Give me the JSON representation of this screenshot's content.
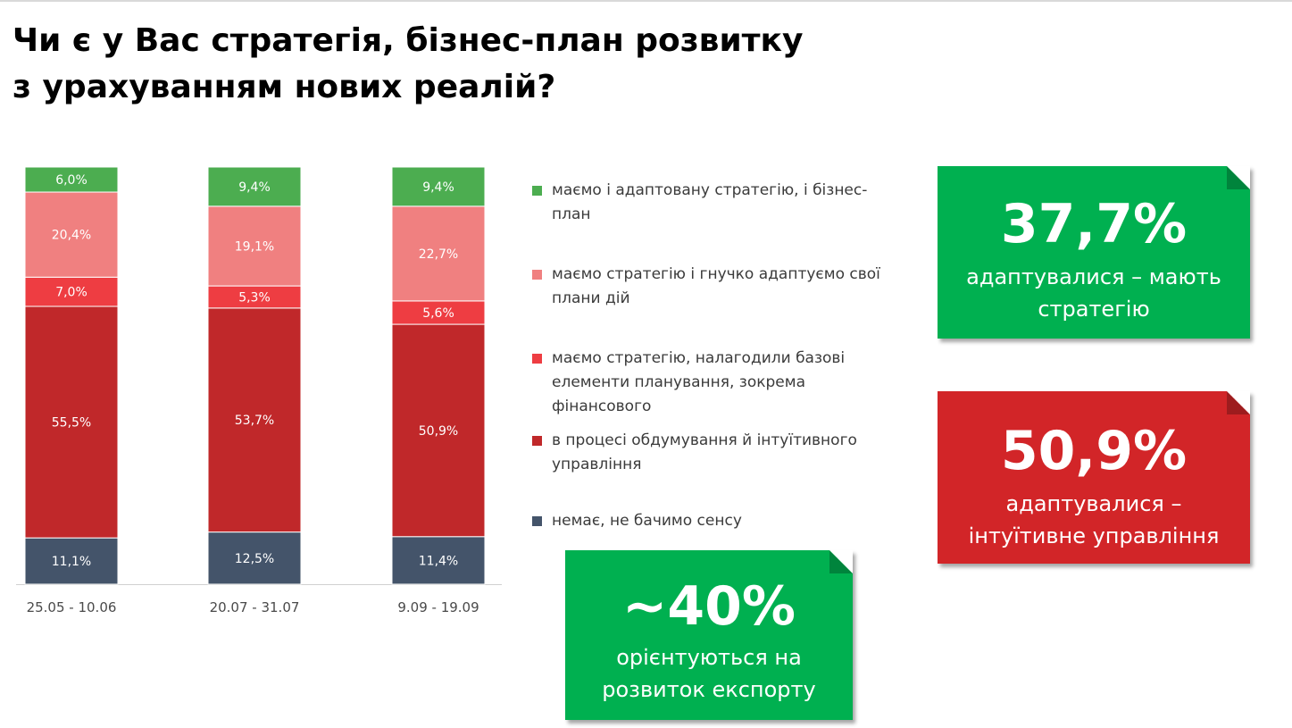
{
  "title": {
    "line1": "Чи є у Вас стратегія, бізнес-план розвитку",
    "line2": "з урахуванням нових реалій?"
  },
  "chart_data": {
    "type": "bar",
    "stacked": true,
    "categories": [
      "25.05 - 10.06",
      "20.07 - 31.07",
      "9.09 - 19.09"
    ],
    "series": [
      {
        "name": "немає, не бачимо сенсу",
        "color": "#44546a",
        "values": [
          11.1,
          12.5,
          11.4
        ],
        "labels": [
          "11,1%",
          "12,5%",
          "11,4%"
        ]
      },
      {
        "name": "в процесі обдумування й інтуїтивного управління",
        "color": "#c0282a",
        "values": [
          55.5,
          53.7,
          50.9
        ],
        "labels": [
          "55,5%",
          "53,7%",
          "50,9%"
        ]
      },
      {
        "name": "маємо стратегію, налагодили базові елементи планування, зокрема фінансового",
        "color": "#ee3d42",
        "values": [
          7.0,
          5.3,
          5.6
        ],
        "labels": [
          "7,0%",
          "5,3%",
          "5,6%"
        ]
      },
      {
        "name": "маємо стратегію і гнучко адаптуємо свої плани дій",
        "color": "#f08080",
        "values": [
          20.4,
          19.1,
          22.7
        ],
        "labels": [
          "20,4%",
          "19,1%",
          "22,7%"
        ]
      },
      {
        "name": "маємо і адаптовану стратегію, і бізнес-план",
        "color": "#4cad50",
        "values": [
          6.0,
          9.4,
          9.4
        ],
        "labels": [
          "6,0%",
          "9,4%",
          "9,4%"
        ]
      }
    ],
    "ylim": [
      0,
      100
    ],
    "grid": false,
    "legend_position": "right"
  },
  "legend": [
    {
      "lines": [
        "маємо і адаптовану стратегію, і бізнес-",
        "план"
      ],
      "color": "#4cad50"
    },
    {
      "lines": [
        "маємо стратегію і гнучко адаптуємо свої",
        "плани дій"
      ],
      "color": "#f08080"
    },
    {
      "lines": [
        "маємо стратегію, налагодили базові",
        "елементи планування, зокрема",
        "фінансового"
      ],
      "color": "#ee3d42"
    },
    {
      "lines": [
        "в процесі обдумування й інтуїтивного",
        "управління"
      ],
      "color": "#c0282a"
    },
    {
      "lines": [
        "немає, не бачимо сенсу"
      ],
      "color": "#44546a"
    }
  ],
  "callouts": {
    "adapted": {
      "big": "37,7%",
      "line1": "адаптувалися – мають",
      "line2": "стратегію",
      "color": "#00b050"
    },
    "intuitive": {
      "big": "50,9%",
      "line1": "адаптувалися –",
      "line2": "інтуїтивне управління",
      "color": "#d22528"
    },
    "export": {
      "big": "~40%",
      "line1": "орієнтуються на",
      "line2": "розвиток експорту",
      "color": "#00b050"
    }
  }
}
